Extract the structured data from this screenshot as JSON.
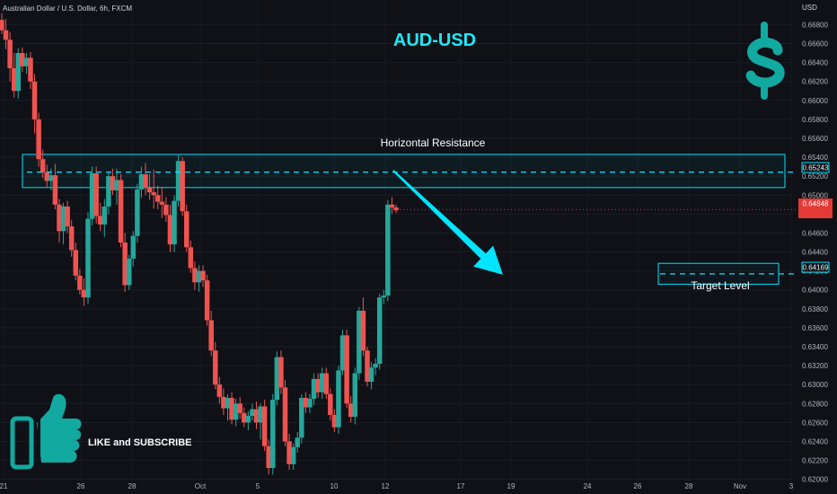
{
  "header": {
    "symbol_description": "Australian Dollar / U.S. Dollar, 6h, FXCM",
    "currency": "USD"
  },
  "title": "AUD-USD",
  "icons": {
    "dollar": "dollar-sign-icon",
    "thumb": "thumbs-up-icon"
  },
  "colors": {
    "background": "#0f1117",
    "bull": "#26a69a",
    "bear": "#ef5350",
    "accent": "#00e5ff",
    "title": "#1de9f6",
    "logo": "#12a9a0",
    "price_box": "#e53935"
  },
  "annotations": {
    "resistance_label": "Horizontal Resistance",
    "target_label": "Target Level",
    "cta": "LIKE and SUBSCRIBE"
  },
  "chart_data": {
    "type": "candlestick",
    "timeframe": "6h",
    "y_axis_ticks": [
      "0.66800",
      "0.66600",
      "0.66400",
      "0.66200",
      "0.66000",
      "0.65800",
      "0.65600",
      "0.65400",
      "0.65200",
      "0.65000",
      "0.64800",
      "0.64600",
      "0.64400",
      "0.64200",
      "0.64000",
      "0.63800",
      "0.63600",
      "0.63400",
      "0.63200",
      "0.63000",
      "0.62800",
      "0.62600",
      "0.62400",
      "0.62200",
      "0.62000"
    ],
    "ylim": [
      0.6194,
      0.6706
    ],
    "x_axis_ticks": [
      "21",
      "26",
      "28",
      "Oct",
      "5",
      "10",
      "12",
      "17",
      "19",
      "24",
      "26",
      "28",
      "Nov",
      "3"
    ],
    "price_labels": {
      "resistance": "0.65243",
      "current": "0.64848",
      "target": "0.64169"
    },
    "resistance_zone": [
      0.6508,
      0.6543
    ],
    "target_zone": [
      0.6406,
      0.6428
    ],
    "arrow": {
      "from_time": 25.1,
      "from_price": 0.6526,
      "to_time": 27.6,
      "to_price": 0.6418
    },
    "candles": [
      {
        "t": 0.3,
        "o": 0.6685,
        "h": 0.6692,
        "l": 0.667,
        "c": 0.6674
      },
      {
        "t": 1.0,
        "o": 0.6674,
        "h": 0.6686,
        "l": 0.6654,
        "c": 0.6664
      },
      {
        "t": 1.7,
        "o": 0.6664,
        "h": 0.6672,
        "l": 0.662,
        "c": 0.6634
      },
      {
        "t": 2.4,
        "o": 0.6634,
        "h": 0.665,
        "l": 0.6603,
        "c": 0.661
      },
      {
        "t": 3.1,
        "o": 0.661,
        "h": 0.6655,
        "l": 0.6602,
        "c": 0.665
      },
      {
        "t": 3.8,
        "o": 0.665,
        "h": 0.6656,
        "l": 0.663,
        "c": 0.6636
      },
      {
        "t": 4.5,
        "o": 0.6636,
        "h": 0.665,
        "l": 0.6628,
        "c": 0.6645
      },
      {
        "t": 5.2,
        "o": 0.6645,
        "h": 0.6651,
        "l": 0.6612,
        "c": 0.662
      },
      {
        "t": 5.9,
        "o": 0.662,
        "h": 0.6628,
        "l": 0.6565,
        "c": 0.658
      },
      {
        "t": 6.6,
        "o": 0.658,
        "h": 0.6587,
        "l": 0.653,
        "c": 0.6538
      },
      {
        "t": 7.3,
        "o": 0.6538,
        "h": 0.6548,
        "l": 0.6518,
        "c": 0.6524
      },
      {
        "t": 8.0,
        "o": 0.6524,
        "h": 0.6532,
        "l": 0.6508,
        "c": 0.6515
      },
      {
        "t": 8.7,
        "o": 0.6515,
        "h": 0.6528,
        "l": 0.6505,
        "c": 0.6521
      },
      {
        "t": 9.4,
        "o": 0.6521,
        "h": 0.6533,
        "l": 0.6485,
        "c": 0.649
      },
      {
        "t": 10.1,
        "o": 0.649,
        "h": 0.6496,
        "l": 0.645,
        "c": 0.6462
      },
      {
        "t": 10.8,
        "o": 0.6462,
        "h": 0.6492,
        "l": 0.6448,
        "c": 0.6488
      },
      {
        "t": 11.5,
        "o": 0.6488,
        "h": 0.6494,
        "l": 0.646,
        "c": 0.6467
      },
      {
        "t": 12.2,
        "o": 0.6467,
        "h": 0.6474,
        "l": 0.6435,
        "c": 0.6442
      },
      {
        "t": 12.9,
        "o": 0.6442,
        "h": 0.645,
        "l": 0.641,
        "c": 0.6415
      },
      {
        "t": 13.6,
        "o": 0.6415,
        "h": 0.6422,
        "l": 0.6395,
        "c": 0.64
      },
      {
        "t": 14.3,
        "o": 0.64,
        "h": 0.6412,
        "l": 0.6383,
        "c": 0.6392
      },
      {
        "t": 15.0,
        "o": 0.6392,
        "h": 0.6482,
        "l": 0.6385,
        "c": 0.6475
      },
      {
        "t": 15.7,
        "o": 0.6475,
        "h": 0.653,
        "l": 0.6468,
        "c": 0.6523
      },
      {
        "t": 16.4,
        "o": 0.6523,
        "h": 0.653,
        "l": 0.647,
        "c": 0.6478
      },
      {
        "t": 17.1,
        "o": 0.6478,
        "h": 0.6492,
        "l": 0.6462,
        "c": 0.6469
      },
      {
        "t": 17.8,
        "o": 0.6469,
        "h": 0.6496,
        "l": 0.6456,
        "c": 0.6488
      },
      {
        "t": 18.5,
        "o": 0.6488,
        "h": 0.6525,
        "l": 0.648,
        "c": 0.652
      },
      {
        "t": 19.2,
        "o": 0.652,
        "h": 0.6528,
        "l": 0.65,
        "c": 0.6505
      },
      {
        "t": 19.9,
        "o": 0.6505,
        "h": 0.6528,
        "l": 0.649,
        "c": 0.6516
      },
      {
        "t": 20.6,
        "o": 0.6516,
        "h": 0.6522,
        "l": 0.6445,
        "c": 0.645
      },
      {
        "t": 21.3,
        "o": 0.645,
        "h": 0.646,
        "l": 0.6398,
        "c": 0.6405
      },
      {
        "t": 22.0,
        "o": 0.6405,
        "h": 0.6437,
        "l": 0.64,
        "c": 0.6433
      },
      {
        "t": 22.7,
        "o": 0.6433,
        "h": 0.6462,
        "l": 0.6425,
        "c": 0.6457
      },
      {
        "t": 23.4,
        "o": 0.6457,
        "h": 0.6512,
        "l": 0.645,
        "c": 0.6506
      },
      {
        "t": 24.1,
        "o": 0.6506,
        "h": 0.653,
        "l": 0.6497,
        "c": 0.6522
      },
      {
        "t": 24.8,
        "o": 0.6522,
        "h": 0.6534,
        "l": 0.65,
        "c": 0.6508
      },
      {
        "t": 25.5,
        "o": 0.6508,
        "h": 0.6522,
        "l": 0.6495,
        "c": 0.6503
      },
      {
        "t": 26.2,
        "o": 0.6503,
        "h": 0.6527,
        "l": 0.6486,
        "c": 0.65
      },
      {
        "t": 26.9,
        "o": 0.65,
        "h": 0.651,
        "l": 0.6485,
        "c": 0.6493
      },
      {
        "t": 27.6,
        "o": 0.6493,
        "h": 0.6508,
        "l": 0.6476,
        "c": 0.649
      },
      {
        "t": 28.3,
        "o": 0.649,
        "h": 0.6498,
        "l": 0.6472,
        "c": 0.6479
      },
      {
        "t": 29.0,
        "o": 0.6479,
        "h": 0.649,
        "l": 0.644,
        "c": 0.6448
      },
      {
        "t": 29.7,
        "o": 0.6448,
        "h": 0.65,
        "l": 0.644,
        "c": 0.6494
      },
      {
        "t": 30.4,
        "o": 0.6494,
        "h": 0.6542,
        "l": 0.6488,
        "c": 0.6536
      },
      {
        "t": 31.1,
        "o": 0.6536,
        "h": 0.654,
        "l": 0.6478,
        "c": 0.6483
      },
      {
        "t": 31.8,
        "o": 0.6483,
        "h": 0.649,
        "l": 0.644,
        "c": 0.6445
      },
      {
        "t": 32.5,
        "o": 0.6445,
        "h": 0.6452,
        "l": 0.6418,
        "c": 0.6423
      },
      {
        "t": 33.2,
        "o": 0.6423,
        "h": 0.643,
        "l": 0.64,
        "c": 0.6408
      },
      {
        "t": 33.9,
        "o": 0.6408,
        "h": 0.6426,
        "l": 0.6398,
        "c": 0.642
      },
      {
        "t": 34.6,
        "o": 0.642,
        "h": 0.6426,
        "l": 0.6403,
        "c": 0.641
      },
      {
        "t": 35.3,
        "o": 0.641,
        "h": 0.6416,
        "l": 0.6362,
        "c": 0.6368
      },
      {
        "t": 36.0,
        "o": 0.6368,
        "h": 0.6378,
        "l": 0.633,
        "c": 0.6336
      },
      {
        "t": 36.7,
        "o": 0.6336,
        "h": 0.6345,
        "l": 0.6295,
        "c": 0.63
      },
      {
        "t": 37.4,
        "o": 0.63,
        "h": 0.6308,
        "l": 0.628,
        "c": 0.6287
      },
      {
        "t": 38.1,
        "o": 0.6287,
        "h": 0.6296,
        "l": 0.6268,
        "c": 0.6275
      },
      {
        "t": 38.8,
        "o": 0.6275,
        "h": 0.629,
        "l": 0.6262,
        "c": 0.6286
      },
      {
        "t": 39.5,
        "o": 0.6286,
        "h": 0.6292,
        "l": 0.6258,
        "c": 0.6263
      },
      {
        "t": 40.2,
        "o": 0.6263,
        "h": 0.6285,
        "l": 0.6256,
        "c": 0.628
      },
      {
        "t": 40.9,
        "o": 0.628,
        "h": 0.6287,
        "l": 0.6264,
        "c": 0.627
      },
      {
        "t": 41.6,
        "o": 0.627,
        "h": 0.6276,
        "l": 0.6255,
        "c": 0.626
      },
      {
        "t": 42.3,
        "o": 0.626,
        "h": 0.6272,
        "l": 0.6252,
        "c": 0.6267
      },
      {
        "t": 43.0,
        "o": 0.6267,
        "h": 0.628,
        "l": 0.6262,
        "c": 0.6274
      },
      {
        "t": 43.7,
        "o": 0.6274,
        "h": 0.6282,
        "l": 0.6253,
        "c": 0.626
      },
      {
        "t": 44.4,
        "o": 0.626,
        "h": 0.628,
        "l": 0.6242,
        "c": 0.6277
      },
      {
        "t": 45.1,
        "o": 0.6277,
        "h": 0.6284,
        "l": 0.623,
        "c": 0.6235
      },
      {
        "t": 45.8,
        "o": 0.6235,
        "h": 0.6242,
        "l": 0.6205,
        "c": 0.6212
      },
      {
        "t": 46.5,
        "o": 0.6212,
        "h": 0.629,
        "l": 0.6205,
        "c": 0.6284
      },
      {
        "t": 47.2,
        "o": 0.6284,
        "h": 0.6335,
        "l": 0.6278,
        "c": 0.6329
      },
      {
        "t": 47.9,
        "o": 0.6329,
        "h": 0.6336,
        "l": 0.629,
        "c": 0.6297
      },
      {
        "t": 48.6,
        "o": 0.6297,
        "h": 0.6305,
        "l": 0.6235,
        "c": 0.624
      },
      {
        "t": 49.3,
        "o": 0.624,
        "h": 0.6248,
        "l": 0.621,
        "c": 0.6216
      },
      {
        "t": 50.0,
        "o": 0.6216,
        "h": 0.6238,
        "l": 0.621,
        "c": 0.6234
      },
      {
        "t": 50.7,
        "o": 0.6234,
        "h": 0.625,
        "l": 0.6228,
        "c": 0.6244
      },
      {
        "t": 51.4,
        "o": 0.6244,
        "h": 0.629,
        "l": 0.6238,
        "c": 0.6286
      },
      {
        "t": 52.1,
        "o": 0.6286,
        "h": 0.6292,
        "l": 0.627,
        "c": 0.6276
      },
      {
        "t": 52.8,
        "o": 0.6276,
        "h": 0.629,
        "l": 0.627,
        "c": 0.6285
      },
      {
        "t": 53.5,
        "o": 0.6285,
        "h": 0.6312,
        "l": 0.6278,
        "c": 0.6306
      },
      {
        "t": 54.2,
        "o": 0.6306,
        "h": 0.6312,
        "l": 0.6286,
        "c": 0.6292
      },
      {
        "t": 54.9,
        "o": 0.6292,
        "h": 0.6318,
        "l": 0.6285,
        "c": 0.6312
      },
      {
        "t": 55.6,
        "o": 0.6312,
        "h": 0.6318,
        "l": 0.6285,
        "c": 0.629
      },
      {
        "t": 56.3,
        "o": 0.629,
        "h": 0.6296,
        "l": 0.6262,
        "c": 0.6268
      },
      {
        "t": 57.0,
        "o": 0.6268,
        "h": 0.6274,
        "l": 0.625,
        "c": 0.6255
      },
      {
        "t": 57.7,
        "o": 0.6255,
        "h": 0.632,
        "l": 0.6248,
        "c": 0.6315
      },
      {
        "t": 58.4,
        "o": 0.6315,
        "h": 0.6358,
        "l": 0.631,
        "c": 0.6352
      },
      {
        "t": 59.1,
        "o": 0.6352,
        "h": 0.6358,
        "l": 0.6275,
        "c": 0.628
      },
      {
        "t": 59.8,
        "o": 0.628,
        "h": 0.6288,
        "l": 0.626,
        "c": 0.6266
      },
      {
        "t": 60.5,
        "o": 0.6266,
        "h": 0.6318,
        "l": 0.6258,
        "c": 0.6312
      },
      {
        "t": 61.2,
        "o": 0.6312,
        "h": 0.6382,
        "l": 0.6305,
        "c": 0.6378
      },
      {
        "t": 61.9,
        "o": 0.6378,
        "h": 0.6392,
        "l": 0.633,
        "c": 0.6336
      },
      {
        "t": 62.6,
        "o": 0.6336,
        "h": 0.634,
        "l": 0.6298,
        "c": 0.6303
      },
      {
        "t": 63.3,
        "o": 0.6303,
        "h": 0.6324,
        "l": 0.6295,
        "c": 0.6318
      },
      {
        "t": 64.0,
        "o": 0.6318,
        "h": 0.6328,
        "l": 0.631,
        "c": 0.6322
      },
      {
        "t": 64.7,
        "o": 0.6322,
        "h": 0.6396,
        "l": 0.6316,
        "c": 0.6392
      },
      {
        "t": 65.4,
        "o": 0.6392,
        "h": 0.64,
        "l": 0.6385,
        "c": 0.6394
      },
      {
        "t": 66.1,
        "o": 0.6394,
        "h": 0.6495,
        "l": 0.6388,
        "c": 0.649
      },
      {
        "t": 66.8,
        "o": 0.649,
        "h": 0.6498,
        "l": 0.648,
        "c": 0.6487
      },
      {
        "t": 67.5,
        "o": 0.6487,
        "h": 0.649,
        "l": 0.6481,
        "c": 0.6484
      }
    ]
  }
}
